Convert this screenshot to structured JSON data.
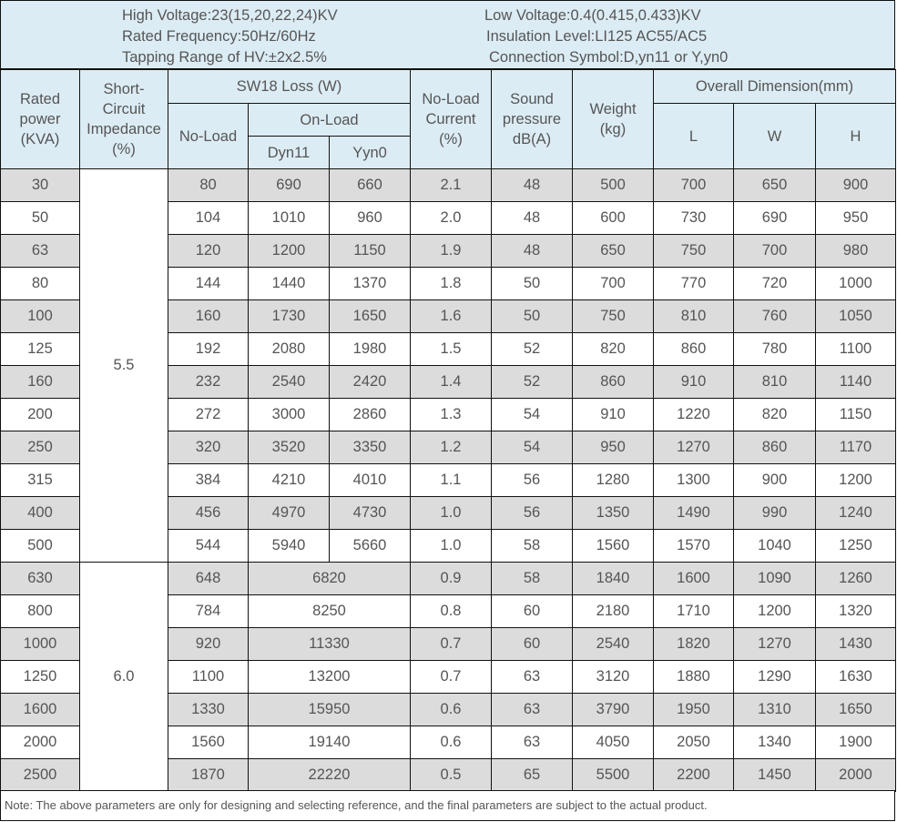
{
  "header": {
    "high_voltage": "High Voltage:23(15,20,22,24)KV",
    "rated_frequency": "Rated Frequency:50Hz/60Hz",
    "tapping_range": "Tapping Range of HV:±2x2.5%",
    "low_voltage": "Low Voltage:0.4(0.415,0.433)KV",
    "insulation_level": "Insulation Level:LI125 AC55/AC5",
    "connection_symbol": "Connection Symbol:D,yn11 or Y,yn0"
  },
  "columns": {
    "rated_power": [
      "Rated",
      "power",
      "(KVA)"
    ],
    "short_circuit": [
      "Short-",
      "Circuit",
      "Impedance",
      "(%)"
    ],
    "sw18_loss": "SW18 Loss (W)",
    "no_load": "No-Load",
    "on_load": "On-Load",
    "dyn11": "Dyn11",
    "yyn0": "Yyn0",
    "no_load_current": [
      "No-Load",
      "Current",
      "(%)"
    ],
    "sound": [
      "Sound",
      "pressure",
      "dB(A)"
    ],
    "weight": [
      "Weight",
      "(kg)"
    ],
    "overall": "Overall Dimension(mm)",
    "L": "L",
    "W": "W",
    "H": "H"
  },
  "impedance_groups": [
    "5.5",
    "6.0"
  ],
  "rows": [
    {
      "kva": "30",
      "no_load": "80",
      "dyn11": "690",
      "yyn0": "660",
      "current": "2.1",
      "sound": "48",
      "weight": "500",
      "L": "700",
      "W": "650",
      "H": "900"
    },
    {
      "kva": "50",
      "no_load": "104",
      "dyn11": "1010",
      "yyn0": "960",
      "current": "2.0",
      "sound": "48",
      "weight": "600",
      "L": "730",
      "W": "690",
      "H": "950"
    },
    {
      "kva": "63",
      "no_load": "120",
      "dyn11": "1200",
      "yyn0": "1150",
      "current": "1.9",
      "sound": "48",
      "weight": "650",
      "L": "750",
      "W": "700",
      "H": "980"
    },
    {
      "kva": "80",
      "no_load": "144",
      "dyn11": "1440",
      "yyn0": "1370",
      "current": "1.8",
      "sound": "50",
      "weight": "700",
      "L": "770",
      "W": "720",
      "H": "1000"
    },
    {
      "kva": "100",
      "no_load": "160",
      "dyn11": "1730",
      "yyn0": "1650",
      "current": "1.6",
      "sound": "50",
      "weight": "750",
      "L": "810",
      "W": "760",
      "H": "1050"
    },
    {
      "kva": "125",
      "no_load": "192",
      "dyn11": "2080",
      "yyn0": "1980",
      "current": "1.5",
      "sound": "52",
      "weight": "820",
      "L": "860",
      "W": "780",
      "H": "1100"
    },
    {
      "kva": "160",
      "no_load": "232",
      "dyn11": "2540",
      "yyn0": "2420",
      "current": "1.4",
      "sound": "52",
      "weight": "860",
      "L": "910",
      "W": "810",
      "H": "1140"
    },
    {
      "kva": "200",
      "no_load": "272",
      "dyn11": "3000",
      "yyn0": "2860",
      "current": "1.3",
      "sound": "54",
      "weight": "910",
      "L": "1220",
      "W": "820",
      "H": "1150"
    },
    {
      "kva": "250",
      "no_load": "320",
      "dyn11": "3520",
      "yyn0": "3350",
      "current": "1.2",
      "sound": "54",
      "weight": "950",
      "L": "1270",
      "W": "860",
      "H": "1170"
    },
    {
      "kva": "315",
      "no_load": "384",
      "dyn11": "4210",
      "yyn0": "4010",
      "current": "1.1",
      "sound": "56",
      "weight": "1280",
      "L": "1300",
      "W": "900",
      "H": "1200"
    },
    {
      "kva": "400",
      "no_load": "456",
      "dyn11": "4970",
      "yyn0": "4730",
      "current": "1.0",
      "sound": "56",
      "weight": "1350",
      "L": "1490",
      "W": "990",
      "H": "1240"
    },
    {
      "kva": "500",
      "no_load": "544",
      "dyn11": "5940",
      "yyn0": "5660",
      "current": "1.0",
      "sound": "58",
      "weight": "1560",
      "L": "1570",
      "W": "1040",
      "H": "1250"
    },
    {
      "kva": "630",
      "no_load": "648",
      "on_load": "6820",
      "current": "0.9",
      "sound": "58",
      "weight": "1840",
      "L": "1600",
      "W": "1090",
      "H": "1260"
    },
    {
      "kva": "800",
      "no_load": "784",
      "on_load": "8250",
      "current": "0.8",
      "sound": "60",
      "weight": "2180",
      "L": "1710",
      "W": "1200",
      "H": "1320"
    },
    {
      "kva": "1000",
      "no_load": "920",
      "on_load": "11330",
      "current": "0.7",
      "sound": "60",
      "weight": "2540",
      "L": "1820",
      "W": "1270",
      "H": "1430"
    },
    {
      "kva": "1250",
      "no_load": "1100",
      "on_load": "13200",
      "current": "0.7",
      "sound": "63",
      "weight": "3120",
      "L": "1880",
      "W": "1290",
      "H": "1630"
    },
    {
      "kva": "1600",
      "no_load": "1330",
      "on_load": "15950",
      "current": "0.6",
      "sound": "63",
      "weight": "3790",
      "L": "1950",
      "W": "1310",
      "H": "1650"
    },
    {
      "kva": "2000",
      "no_load": "1560",
      "on_load": "19140",
      "current": "0.6",
      "sound": "63",
      "weight": "4050",
      "L": "2050",
      "W": "1340",
      "H": "1900"
    },
    {
      "kva": "2500",
      "no_load": "1870",
      "on_load": "22220",
      "current": "0.5",
      "sound": "65",
      "weight": "5500",
      "L": "2200",
      "W": "1450",
      "H": "2000"
    }
  ],
  "note": "Note: The above parameters are only for designing and selecting  reference, and the final parameters are subject to the actual product."
}
